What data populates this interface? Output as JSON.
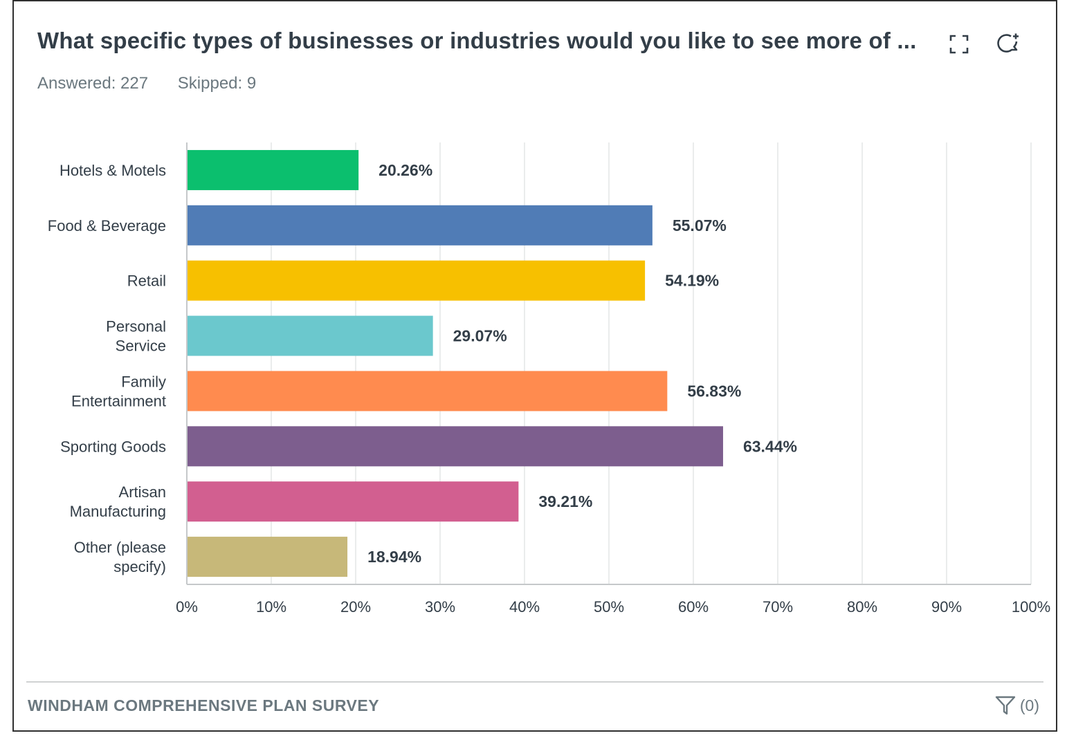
{
  "header": {
    "title": "What specific types of businesses or industries would you like to see more of ...",
    "answered": "Answered: 227",
    "skipped": "Skipped: 9",
    "expand_icon": "expand-icon",
    "comment_icon": "comment-add-icon"
  },
  "chart_data": {
    "type": "bar",
    "orientation": "horizontal",
    "categories": [
      [
        "Hotels & Motels"
      ],
      [
        "Food & Beverage"
      ],
      [
        "Retail"
      ],
      [
        "Personal",
        "Service"
      ],
      [
        "Family",
        "Entertainment"
      ],
      [
        "Sporting Goods"
      ],
      [
        "Artisan",
        "Manufacturing"
      ],
      [
        "Other (please",
        "specify)"
      ]
    ],
    "values": [
      20.26,
      55.07,
      54.19,
      29.07,
      56.83,
      63.44,
      39.21,
      18.94
    ],
    "value_labels": [
      "20.26%",
      "55.07%",
      "54.19%",
      "29.07%",
      "56.83%",
      "63.44%",
      "39.21%",
      "18.94%"
    ],
    "colors": [
      "#0bbf6e",
      "#507cb6",
      "#f7c000",
      "#6bc8cd",
      "#ff8b4f",
      "#7d5e8e",
      "#d25f90",
      "#c7b879"
    ],
    "xlim": [
      0,
      100
    ],
    "xticks": [
      "0%",
      "10%",
      "20%",
      "30%",
      "40%",
      "50%",
      "60%",
      "70%",
      "80%",
      "90%",
      "100%"
    ],
    "grid": true,
    "xlabel": "",
    "ylabel": ""
  },
  "footer": {
    "survey_name": "WINDHAM COMPREHENSIVE PLAN SURVEY",
    "filter_label": "(0)",
    "filter_icon": "filter-icon"
  }
}
